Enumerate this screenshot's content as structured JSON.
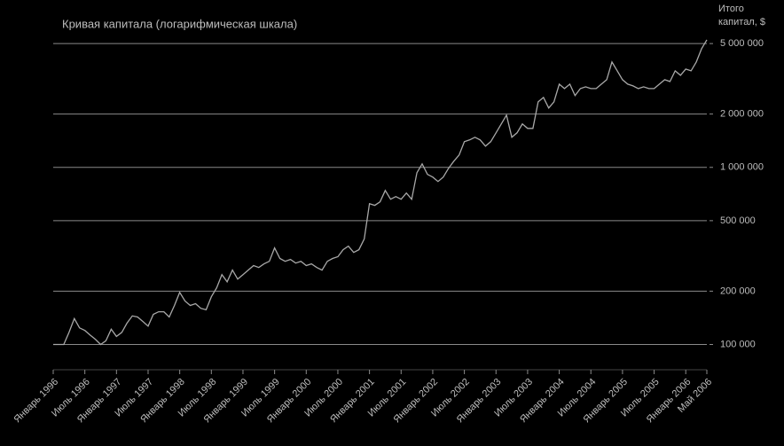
{
  "chart_data": {
    "type": "line",
    "title": "Кривая капитала (логарифмическая шкала)",
    "y_label": "Итого капитал, $",
    "log_scale": true,
    "grid": true,
    "color": "#a8a8a8",
    "x": [
      "1996-01",
      "1996-02",
      "1996-03",
      "1996-04",
      "1996-05",
      "1996-06",
      "1996-07",
      "1996-08",
      "1996-09",
      "1996-10",
      "1996-11",
      "1996-12",
      "1997-01",
      "1997-02",
      "1997-03",
      "1997-04",
      "1997-05",
      "1997-06",
      "1997-07",
      "1997-08",
      "1997-09",
      "1997-10",
      "1997-11",
      "1997-12",
      "1998-01",
      "1998-02",
      "1998-03",
      "1998-04",
      "1998-05",
      "1998-06",
      "1998-07",
      "1998-08",
      "1998-09",
      "1998-10",
      "1998-11",
      "1998-12",
      "1999-01",
      "1999-02",
      "1999-03",
      "1999-04",
      "1999-05",
      "1999-06",
      "1999-07",
      "1999-08",
      "1999-09",
      "1999-10",
      "1999-11",
      "1999-12",
      "2000-01",
      "2000-02",
      "2000-03",
      "2000-04",
      "2000-05",
      "2000-06",
      "2000-07",
      "2000-08",
      "2000-09",
      "2000-10",
      "2000-11",
      "2000-12",
      "2001-01",
      "2001-02",
      "2001-03",
      "2001-04",
      "2001-05",
      "2001-06",
      "2001-07",
      "2001-08",
      "2001-09",
      "2001-10",
      "2001-11",
      "2001-12",
      "2002-01",
      "2002-02",
      "2002-03",
      "2002-04",
      "2002-05",
      "2002-06",
      "2002-07",
      "2002-08",
      "2002-09",
      "2002-10",
      "2002-11",
      "2002-12",
      "2003-01",
      "2003-02",
      "2003-03",
      "2003-04",
      "2003-05",
      "2003-06",
      "2003-07",
      "2003-08",
      "2003-09",
      "2003-10",
      "2003-11",
      "2003-12",
      "2004-01",
      "2004-02",
      "2004-03",
      "2004-04",
      "2004-05",
      "2004-06",
      "2004-07",
      "2004-08",
      "2004-09",
      "2004-10",
      "2004-11",
      "2004-12",
      "2005-01",
      "2005-02",
      "2005-03",
      "2005-04",
      "2005-05",
      "2005-06",
      "2005-07",
      "2005-08",
      "2005-09",
      "2005-10",
      "2005-11",
      "2005-12",
      "2006-01",
      "2006-02",
      "2006-03",
      "2006-04",
      "2006-05"
    ],
    "values": [
      100000,
      100000,
      100000,
      117000,
      140000,
      124000,
      120000,
      113000,
      107000,
      100000,
      105000,
      122000,
      111000,
      117000,
      132000,
      145000,
      143000,
      135000,
      127000,
      148000,
      153000,
      153000,
      143000,
      166000,
      197000,
      176000,
      166000,
      170000,
      160000,
      157000,
      186000,
      209000,
      248000,
      226000,
      263000,
      234000,
      248000,
      263000,
      279000,
      272000,
      285000,
      295000,
      351000,
      306000,
      295000,
      302000,
      288000,
      295000,
      279000,
      285000,
      272000,
      263000,
      295000,
      306000,
      313000,
      343000,
      359000,
      331000,
      343000,
      394000,
      624000,
      610000,
      638000,
      741000,
      661000,
      684000,
      661000,
      716000,
      661000,
      933000,
      1047000,
      912000,
      881000,
      832000,
      881000,
      989000,
      1083000,
      1175000,
      1396000,
      1429000,
      1479000,
      1429000,
      1318000,
      1396000,
      1567000,
      1758000,
      1972000,
      1479000,
      1567000,
      1758000,
      1660000,
      1660000,
      2344000,
      2483000,
      2163000,
      2344000,
      2951000,
      2786000,
      2951000,
      2542000,
      2786000,
      2851000,
      2786000,
      2786000,
      2951000,
      3126000,
      3936000,
      3508000,
      3126000,
      2951000,
      2884000,
      2786000,
      2851000,
      2786000,
      2786000,
      2951000,
      3126000,
      3055000,
      3508000,
      3311000,
      3589000,
      3508000,
      3936000,
      4677000,
      5248000
    ],
    "ylim": [
      72000,
      7850000
    ],
    "yticks": [
      {
        "value": 100000,
        "label": "100 000"
      },
      {
        "value": 200000,
        "label": "200 000"
      },
      {
        "value": 500000,
        "label": "500 000"
      },
      {
        "value": 1000000,
        "label": "1 000 000"
      },
      {
        "value": 2000000,
        "label": "2 000 000"
      },
      {
        "value": 5000000,
        "label": "5 000 000"
      }
    ],
    "xticks": [
      {
        "value": "1996-01",
        "label": "Январь 1996"
      },
      {
        "value": "1996-07",
        "label": "Июль 1996"
      },
      {
        "value": "1997-01",
        "label": "Январь 1997"
      },
      {
        "value": "1997-07",
        "label": "Июль 1997"
      },
      {
        "value": "1998-01",
        "label": "Январь 1998"
      },
      {
        "value": "1998-07",
        "label": "Июль 1998"
      },
      {
        "value": "1999-01",
        "label": "Январь 1999"
      },
      {
        "value": "1999-07",
        "label": "Июль 1999"
      },
      {
        "value": "2000-01",
        "label": "Январь 2000"
      },
      {
        "value": "2000-07",
        "label": "Июль 2000"
      },
      {
        "value": "2001-01",
        "label": "Январь 2001"
      },
      {
        "value": "2001-07",
        "label": "Июль 2001"
      },
      {
        "value": "2002-01",
        "label": "Январь 2002"
      },
      {
        "value": "2002-07",
        "label": "Июль 2002"
      },
      {
        "value": "2003-01",
        "label": "Январь 2003"
      },
      {
        "value": "2003-07",
        "label": "Июль 2003"
      },
      {
        "value": "2004-01",
        "label": "Январь 2004"
      },
      {
        "value": "2004-07",
        "label": "Июль 2004"
      },
      {
        "value": "2005-01",
        "label": "Январь 2005"
      },
      {
        "value": "2005-07",
        "label": "Июль 2005"
      },
      {
        "value": "2006-01",
        "label": "Январь 2006"
      },
      {
        "value": "2006-05",
        "label": "Май 2006"
      }
    ]
  }
}
